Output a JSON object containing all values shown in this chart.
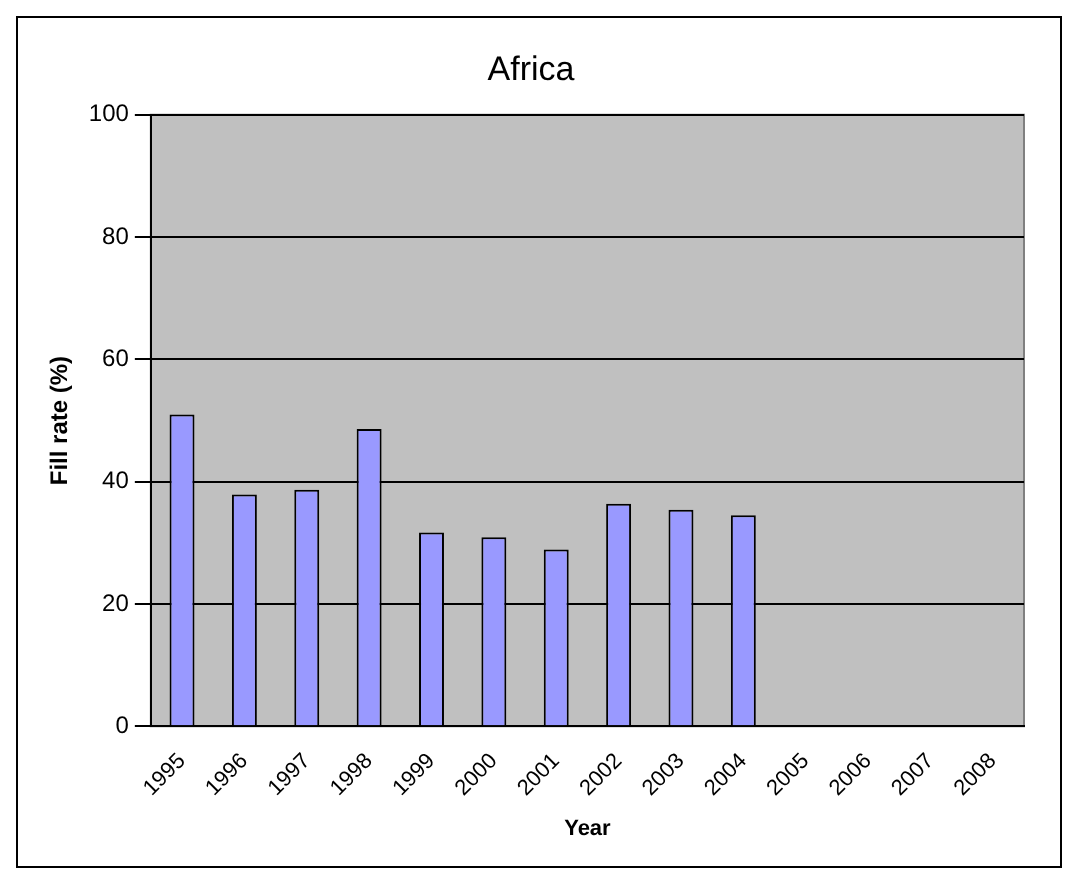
{
  "chart_data": {
    "type": "bar",
    "title": "Africa",
    "xlabel": "Year",
    "ylabel": "Fill rate (%)",
    "categories": [
      "1995",
      "1996",
      "1997",
      "1998",
      "1999",
      "2000",
      "2001",
      "2002",
      "2003",
      "2004",
      "2005",
      "2006",
      "2007",
      "2008"
    ],
    "values": [
      51,
      37.9,
      38.7,
      48.6,
      31.7,
      30.9,
      28.9,
      36.4,
      35.4,
      34.5,
      null,
      null,
      null,
      null
    ],
    "color": "#9999ff",
    "ylim": [
      0,
      100
    ],
    "yticks": [
      0,
      20,
      40,
      60,
      80,
      100
    ],
    "grid": "y",
    "legend": false
  }
}
